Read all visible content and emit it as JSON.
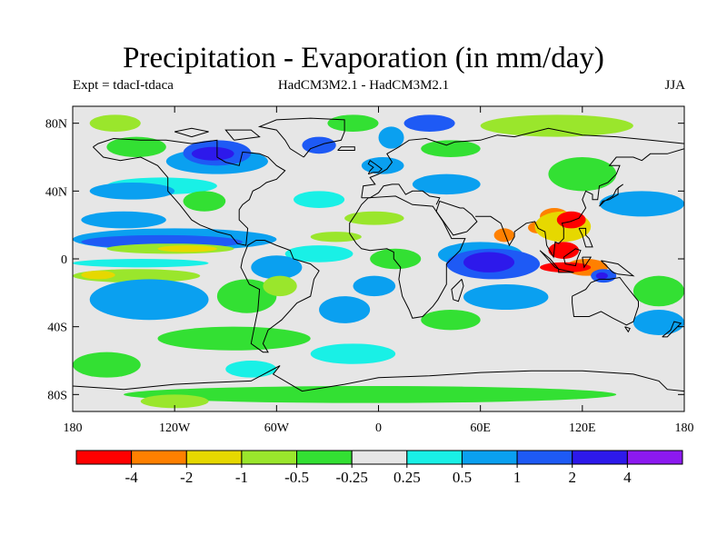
{
  "title": "Precipitation - Evaporation (in mm/day)",
  "subtitle_left": "Expt = tdacI-tdaca",
  "subtitle_center": "HadCM3M2.1 - HadCM3M2.1",
  "subtitle_right": "JJA",
  "lat_ticks": [
    {
      "label": "80N",
      "value": 80
    },
    {
      "label": "40N",
      "value": 40
    },
    {
      "label": "0",
      "value": 0
    },
    {
      "label": "40S",
      "value": -40
    },
    {
      "label": "80S",
      "value": -80
    }
  ],
  "lon_ticks": [
    {
      "label": "180",
      "value": -180
    },
    {
      "label": "120W",
      "value": -120
    },
    {
      "label": "60W",
      "value": -60
    },
    {
      "label": "0",
      "value": 0
    },
    {
      "label": "60E",
      "value": 60
    },
    {
      "label": "120E",
      "value": 120
    },
    {
      "label": "180",
      "value": 180
    }
  ],
  "colorbar": {
    "colors": [
      "#ff0000",
      "#ff8000",
      "#e6d800",
      "#9ae62c",
      "#33e033",
      "#e6e6e6",
      "#19f0e6",
      "#0aa0f0",
      "#1e5af5",
      "#2d19eb",
      "#8c19f0"
    ],
    "labels": [
      "-4",
      "-2",
      "-1",
      "-0.5",
      "-0.25",
      "0.25",
      "0.5",
      "1",
      "2",
      "4"
    ]
  },
  "chart_data": {
    "type": "map",
    "title": "Precipitation - Evaporation (in mm/day)",
    "variable": "P-E difference",
    "units": "mm/day",
    "season": "JJA",
    "lon_range": [
      -180,
      180
    ],
    "lat_range": [
      -90,
      90
    ],
    "contour_levels": [
      -4,
      -2,
      -1,
      -0.5,
      -0.25,
      0.25,
      0.5,
      1,
      2,
      4
    ],
    "level_colors": [
      "#ff0000",
      "#ff8000",
      "#e6d800",
      "#9ae62c",
      "#33e033",
      "#e6e6e6",
      "#19f0e6",
      "#0aa0f0",
      "#1e5af5",
      "#2d19eb",
      "#8c19f0"
    ],
    "background_value_class": 5,
    "regions": [
      {
        "cls": 6,
        "lon": [
          -160,
          -95
        ],
        "lat": [
          38,
          48
        ]
      },
      {
        "cls": 7,
        "lon": [
          -170,
          -120
        ],
        "lat": [
          35,
          45
        ]
      },
      {
        "cls": 4,
        "lon": [
          -115,
          -90
        ],
        "lat": [
          28,
          40
        ]
      },
      {
        "cls": 6,
        "lon": [
          -50,
          -20
        ],
        "lat": [
          30,
          40
        ]
      },
      {
        "cls": 7,
        "lon": [
          -175,
          -125
        ],
        "lat": [
          18,
          28
        ]
      },
      {
        "cls": 7,
        "lon": [
          -180,
          -60
        ],
        "lat": [
          5,
          18
        ]
      },
      {
        "cls": 8,
        "lon": [
          -175,
          -80
        ],
        "lat": [
          6,
          14
        ]
      },
      {
        "cls": 3,
        "lon": [
          -160,
          -85
        ],
        "lat": [
          3,
          9
        ]
      },
      {
        "cls": 2,
        "lon": [
          -130,
          -95
        ],
        "lat": [
          4,
          8
        ]
      },
      {
        "cls": 6,
        "lon": [
          -55,
          -15
        ],
        "lat": [
          -2,
          8
        ]
      },
      {
        "cls": 3,
        "lon": [
          -40,
          -10
        ],
        "lat": [
          10,
          16
        ]
      },
      {
        "cls": 6,
        "lon": [
          -180,
          -100
        ],
        "lat": [
          -5,
          0
        ]
      },
      {
        "cls": 3,
        "lon": [
          -180,
          -105
        ],
        "lat": [
          -14,
          -6
        ]
      },
      {
        "cls": 2,
        "lon": [
          -175,
          -155
        ],
        "lat": [
          -12,
          -7
        ]
      },
      {
        "cls": 8,
        "lon": [
          -160,
          -130
        ],
        "lat": [
          -28,
          -16
        ]
      },
      {
        "cls": 9,
        "lon": [
          -153,
          -140
        ],
        "lat": [
          -24,
          -19
        ]
      },
      {
        "cls": 7,
        "lon": [
          -170,
          -100
        ],
        "lat": [
          -36,
          -12
        ]
      },
      {
        "cls": 4,
        "lon": [
          -95,
          -60
        ],
        "lat": [
          -32,
          -12
        ]
      },
      {
        "cls": 7,
        "lon": [
          -75,
          -45
        ],
        "lat": [
          -12,
          2
        ]
      },
      {
        "cls": 3,
        "lon": [
          -68,
          -48
        ],
        "lat": [
          -22,
          -10
        ]
      },
      {
        "cls": 7,
        "lon": [
          -35,
          -5
        ],
        "lat": [
          -38,
          -22
        ]
      },
      {
        "cls": 4,
        "lon": [
          -130,
          -40
        ],
        "lat": [
          -54,
          -40
        ]
      },
      {
        "cls": 6,
        "lon": [
          -40,
          10
        ],
        "lat": [
          -62,
          -50
        ]
      },
      {
        "cls": 4,
        "lon": [
          -5,
          25
        ],
        "lat": [
          -6,
          6
        ]
      },
      {
        "cls": 7,
        "lon": [
          -15,
          10
        ],
        "lat": [
          -22,
          -10
        ]
      },
      {
        "cls": 7,
        "lon": [
          35,
          85
        ],
        "lat": [
          -5,
          10
        ]
      },
      {
        "cls": 8,
        "lon": [
          40,
          95
        ],
        "lat": [
          -12,
          6
        ]
      },
      {
        "cls": 9,
        "lon": [
          50,
          80
        ],
        "lat": [
          -8,
          4
        ]
      },
      {
        "cls": 7,
        "lon": [
          50,
          100
        ],
        "lat": [
          -30,
          -15
        ]
      },
      {
        "cls": 4,
        "lon": [
          25,
          60
        ],
        "lat": [
          -42,
          -30
        ]
      },
      {
        "cls": 1,
        "lon": [
          68,
          80
        ],
        "lat": [
          10,
          18
        ]
      },
      {
        "cls": 1,
        "lon": [
          88,
          100
        ],
        "lat": [
          15,
          22
        ]
      },
      {
        "cls": 1,
        "lon": [
          95,
          112
        ],
        "lat": [
          20,
          30
        ]
      },
      {
        "cls": 2,
        "lon": [
          92,
          125
        ],
        "lat": [
          10,
          28
        ]
      },
      {
        "cls": 0,
        "lon": [
          105,
          122
        ],
        "lat": [
          18,
          28
        ]
      },
      {
        "cls": 0,
        "lon": [
          100,
          118
        ],
        "lat": [
          0,
          10
        ]
      },
      {
        "cls": 1,
        "lon": [
          110,
          135
        ],
        "lat": [
          -10,
          0
        ]
      },
      {
        "cls": 0,
        "lon": [
          95,
          125
        ],
        "lat": [
          -8,
          -2
        ]
      },
      {
        "cls": 8,
        "lon": [
          125,
          140
        ],
        "lat": [
          -14,
          -6
        ]
      },
      {
        "cls": 9,
        "lon": [
          128,
          135
        ],
        "lat": [
          -12,
          -8
        ]
      },
      {
        "cls": 7,
        "lon": [
          130,
          180
        ],
        "lat": [
          25,
          40
        ]
      },
      {
        "cls": 4,
        "lon": [
          150,
          180
        ],
        "lat": [
          -28,
          -10
        ]
      },
      {
        "cls": 7,
        "lon": [
          150,
          180
        ],
        "lat": [
          -45,
          -30
        ]
      },
      {
        "cls": 4,
        "lon": [
          -180,
          -140
        ],
        "lat": [
          -70,
          -55
        ]
      },
      {
        "cls": 6,
        "lon": [
          -90,
          -60
        ],
        "lat": [
          -70,
          -60
        ]
      },
      {
        "cls": 4,
        "lon": [
          -150,
          140
        ],
        "lat": [
          -85,
          -75
        ]
      },
      {
        "cls": 3,
        "lon": [
          -140,
          -100
        ],
        "lat": [
          -88,
          -80
        ]
      },
      {
        "cls": 7,
        "lon": [
          -125,
          -65
        ],
        "lat": [
          50,
          65
        ]
      },
      {
        "cls": 8,
        "lon": [
          -115,
          -75
        ],
        "lat": [
          55,
          70
        ]
      },
      {
        "cls": 9,
        "lon": [
          -110,
          -85
        ],
        "lat": [
          58,
          66
        ]
      },
      {
        "cls": 3,
        "lon": [
          -170,
          -140
        ],
        "lat": [
          75,
          85
        ]
      },
      {
        "cls": 4,
        "lon": [
          -160,
          -125
        ],
        "lat": [
          60,
          72
        ]
      },
      {
        "cls": 8,
        "lon": [
          -45,
          -25
        ],
        "lat": [
          62,
          72
        ]
      },
      {
        "cls": 4,
        "lon": [
          -30,
          0
        ],
        "lat": [
          75,
          85
        ]
      },
      {
        "cls": 7,
        "lon": [
          0,
          15
        ],
        "lat": [
          65,
          78
        ]
      },
      {
        "cls": 8,
        "lon": [
          15,
          45
        ],
        "lat": [
          75,
          85
        ]
      },
      {
        "cls": 3,
        "lon": [
          60,
          150
        ],
        "lat": [
          72,
          85
        ]
      },
      {
        "cls": 4,
        "lon": [
          25,
          60
        ],
        "lat": [
          60,
          70
        ]
      },
      {
        "cls": 7,
        "lon": [
          -10,
          15
        ],
        "lat": [
          50,
          60
        ]
      },
      {
        "cls": 4,
        "lon": [
          100,
          140
        ],
        "lat": [
          40,
          60
        ]
      },
      {
        "cls": 7,
        "lon": [
          20,
          60
        ],
        "lat": [
          38,
          50
        ]
      },
      {
        "cls": 3,
        "lon": [
          -20,
          15
        ],
        "lat": [
          20,
          28
        ]
      }
    ]
  }
}
